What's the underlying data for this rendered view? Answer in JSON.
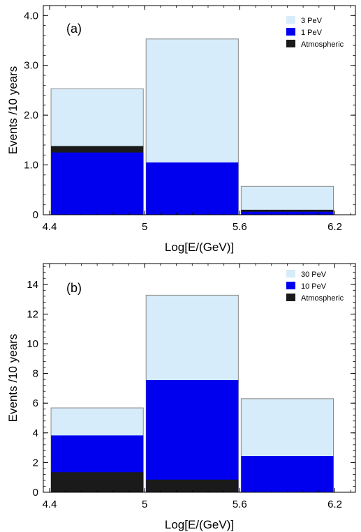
{
  "chart_data": [
    {
      "type": "bar",
      "panel_label": "(a)",
      "xlabel": "Log[E/(GeV)]",
      "ylabel": "Events /10 years",
      "x_ticks": [
        "4.4",
        "5",
        "5.6",
        "6.2"
      ],
      "x_tick_values": [
        4.4,
        5.0,
        5.6,
        6.2
      ],
      "xlim": [
        4.36,
        6.33
      ],
      "y_ticks": [
        "0",
        "1.0",
        "2.0",
        "3.0",
        "4.0"
      ],
      "y_tick_values": [
        0,
        1.0,
        2.0,
        3.0,
        4.0
      ],
      "ylim": [
        0,
        4.2
      ],
      "bins": [
        [
          4.4,
          5.0
        ],
        [
          5.0,
          5.6
        ],
        [
          5.6,
          6.2
        ]
      ],
      "series": [
        {
          "name": "3 PeV",
          "values": [
            2.53,
            3.53,
            0.57
          ],
          "color": "#d6ecfa"
        },
        {
          "name": "Atmospheric",
          "values": [
            1.38,
            0.0,
            0.1
          ],
          "color": "#1a1a1a"
        },
        {
          "name": "1 PeV",
          "values": [
            1.25,
            1.05,
            0.06
          ],
          "color": "#0000ee"
        }
      ],
      "legend": [
        {
          "name": "3 PeV",
          "color": "#d6ecfa"
        },
        {
          "name": "1 PeV",
          "color": "#0000ee"
        },
        {
          "name": "Atmospheric",
          "color": "#1a1a1a"
        }
      ],
      "legend_position": "top-right"
    },
    {
      "type": "bar",
      "panel_label": "(b)",
      "xlabel": "Log[E/(GeV)]",
      "ylabel": "Events /10 years",
      "x_ticks": [
        "4.4",
        "5",
        "5.6",
        "6.2"
      ],
      "x_tick_values": [
        4.4,
        5.0,
        5.6,
        6.2
      ],
      "xlim": [
        4.36,
        6.33
      ],
      "y_ticks": [
        "0",
        "2",
        "4",
        "6",
        "8",
        "10",
        "12",
        "14"
      ],
      "y_tick_values": [
        0,
        2,
        4,
        6,
        8,
        10,
        12,
        14
      ],
      "ylim": [
        0,
        15.4
      ],
      "bins": [
        [
          4.4,
          5.0
        ],
        [
          5.0,
          5.6
        ],
        [
          5.6,
          6.2
        ]
      ],
      "series": [
        {
          "name": "30 PeV",
          "values": [
            5.68,
            13.27,
            6.3
          ],
          "color": "#d6ecfa"
        },
        {
          "name": "10 PeV",
          "values": [
            3.83,
            7.56,
            2.44
          ],
          "color": "#0000ee"
        },
        {
          "name": "Atmospheric",
          "values": [
            1.35,
            0.85,
            0.0
          ],
          "color": "#1a1a1a"
        }
      ],
      "legend": [
        {
          "name": "30 PeV",
          "color": "#d6ecfa"
        },
        {
          "name": "10 PeV",
          "color": "#0000ee"
        },
        {
          "name": "Atmospheric",
          "color": "#1a1a1a"
        }
      ],
      "legend_position": "top-right"
    }
  ]
}
